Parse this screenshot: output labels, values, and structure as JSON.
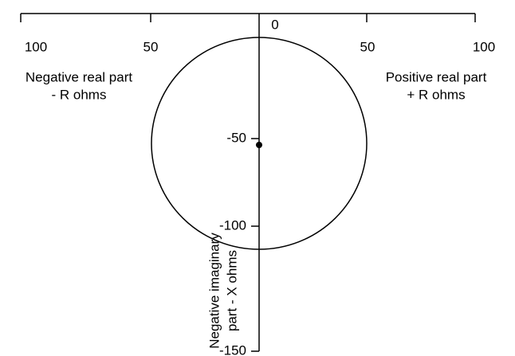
{
  "axes": {
    "top_ticks": [
      "100",
      "50",
      "0",
      "50",
      "100"
    ],
    "left_label": [
      "Negative real part",
      "- R  ohms"
    ],
    "right_label": [
      "Positive real part",
      "+ R  ohms"
    ],
    "vertical_ticks": [
      "-50",
      "-100",
      "-150"
    ],
    "vertical_label": [
      "Negative imaginary",
      "part   - X  ohms"
    ]
  }
}
